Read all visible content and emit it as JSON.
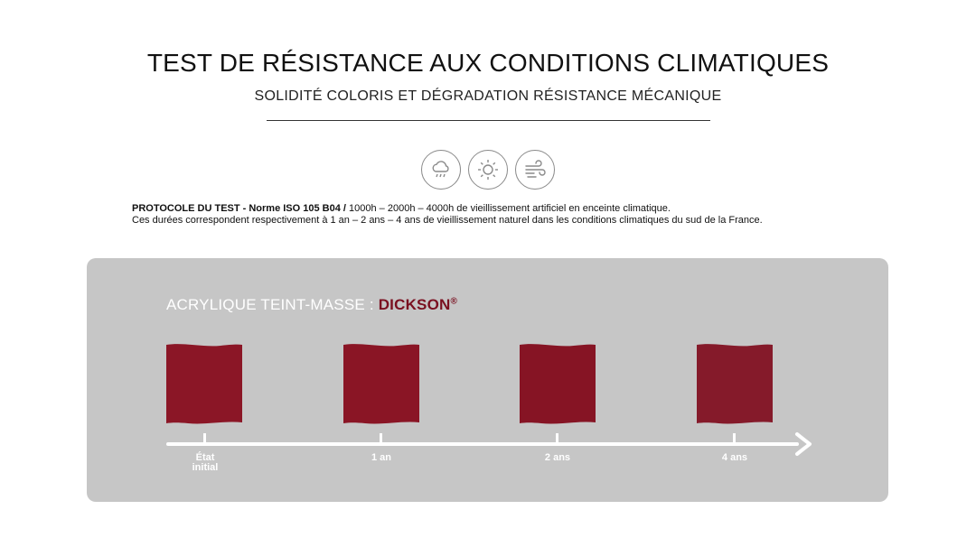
{
  "header": {
    "title": "TEST DE RÉSISTANCE AUX CONDITIONS CLIMATIQUES",
    "subtitle": "SOLIDITÉ COLORIS ET DÉGRADATION RÉSISTANCE MÉCANIQUE"
  },
  "icons": [
    {
      "name": "rain-cloud-icon"
    },
    {
      "name": "sun-icon"
    },
    {
      "name": "wind-icon"
    }
  ],
  "protocol": {
    "bold_text": "PROTOCOLE DU TEST - Norme ISO 105 B04 /",
    "text": " 1000h – 2000h – 4000h de vieillissement artificiel en enceinte climatique.",
    "line2": "Ces durées correspondent respectivement à 1 an – 2 ans – 4 ans de vieillissement naturel dans les conditions climatiques du sud de la France."
  },
  "panel": {
    "material_label": "ACRYLIQUE TEINT-MASSE : ",
    "brand": "DICKSON",
    "brand_mark": "®",
    "swatch_colors": [
      "#8b1626",
      "#8a1525",
      "#861424",
      "#851a2a"
    ],
    "stages": [
      {
        "line1": "État",
        "line2": "initial"
      },
      {
        "line1": "1 an",
        "line2": ""
      },
      {
        "line1": "2 ans",
        "line2": ""
      },
      {
        "line1": "4 ans",
        "line2": ""
      }
    ]
  },
  "colors": {
    "panel_bg": "#c6c6c6",
    "brand": "#7a1020",
    "fabric": "#8b1626"
  }
}
